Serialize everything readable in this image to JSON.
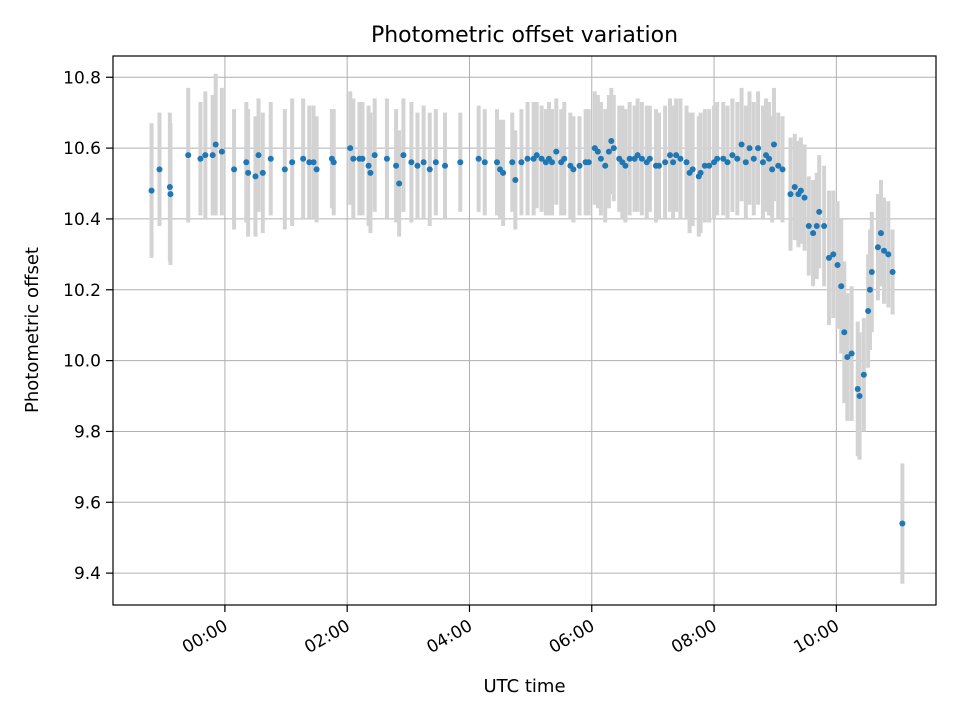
{
  "chart_data": {
    "type": "scatter",
    "title": "Photometric offset variation",
    "xlabel": "UTC time",
    "ylabel": "Photometric offset",
    "x_unit": "hours relative to 00:00 UTC",
    "xlim": [
      -1.83,
      11.63
    ],
    "ylim": [
      9.31,
      10.86
    ],
    "grid": true,
    "xticks": [
      {
        "value": 0,
        "label": "00:00"
      },
      {
        "value": 2,
        "label": "02:00"
      },
      {
        "value": 4,
        "label": "04:00"
      },
      {
        "value": 6,
        "label": "06:00"
      },
      {
        "value": 8,
        "label": "08:00"
      },
      {
        "value": 10,
        "label": "10:00"
      }
    ],
    "yticks": [
      {
        "value": 9.4,
        "label": "9.4"
      },
      {
        "value": 9.6,
        "label": "9.6"
      },
      {
        "value": 9.8,
        "label": "9.8"
      },
      {
        "value": 10.0,
        "label": "10.0"
      },
      {
        "value": 10.2,
        "label": "10.2"
      },
      {
        "value": 10.4,
        "label": "10.4"
      },
      {
        "value": 10.6,
        "label": "10.6"
      },
      {
        "value": 10.8,
        "label": "10.8"
      }
    ],
    "marker_color": "#1f77b4",
    "errorbar_color": "#d3d3d3",
    "series": [
      {
        "name": "offset",
        "points": [
          [
            -1.2,
            10.48,
            0.19
          ],
          [
            -1.07,
            10.54,
            0.16
          ],
          [
            -0.9,
            10.49,
            0.21
          ],
          [
            -0.89,
            10.47,
            0.2
          ],
          [
            -0.6,
            10.58,
            0.19
          ],
          [
            -0.4,
            10.57,
            0.16
          ],
          [
            -0.32,
            10.58,
            0.18
          ],
          [
            -0.2,
            10.58,
            0.17
          ],
          [
            -0.15,
            10.61,
            0.2
          ],
          [
            -0.05,
            10.59,
            0.18
          ],
          [
            0.15,
            10.54,
            0.17
          ],
          [
            0.35,
            10.56,
            0.17
          ],
          [
            0.38,
            10.53,
            0.18
          ],
          [
            0.5,
            10.52,
            0.17
          ],
          [
            0.55,
            10.58,
            0.16
          ],
          [
            0.62,
            10.53,
            0.17
          ],
          [
            0.75,
            10.57,
            0.16
          ],
          [
            0.98,
            10.54,
            0.17
          ],
          [
            1.1,
            10.56,
            0.18
          ],
          [
            1.28,
            10.57,
            0.17
          ],
          [
            1.38,
            10.56,
            0.16
          ],
          [
            1.45,
            10.56,
            0.16
          ],
          [
            1.5,
            10.54,
            0.15
          ],
          [
            1.75,
            10.57,
            0.14
          ],
          [
            1.78,
            10.56,
            0.15
          ],
          [
            2.05,
            10.6,
            0.16
          ],
          [
            2.1,
            10.57,
            0.17
          ],
          [
            2.2,
            10.57,
            0.16
          ],
          [
            2.25,
            10.57,
            0.16
          ],
          [
            2.35,
            10.55,
            0.17
          ],
          [
            2.38,
            10.53,
            0.17
          ],
          [
            2.45,
            10.58,
            0.16
          ],
          [
            2.65,
            10.57,
            0.17
          ],
          [
            2.8,
            10.55,
            0.16
          ],
          [
            2.85,
            10.5,
            0.15
          ],
          [
            2.92,
            10.58,
            0.16
          ],
          [
            3.05,
            10.56,
            0.17
          ],
          [
            3.15,
            10.55,
            0.15
          ],
          [
            3.25,
            10.56,
            0.16
          ],
          [
            3.35,
            10.54,
            0.16
          ],
          [
            3.45,
            10.56,
            0.15
          ],
          [
            3.6,
            10.55,
            0.15
          ],
          [
            3.85,
            10.56,
            0.14
          ],
          [
            4.15,
            10.57,
            0.15
          ],
          [
            4.25,
            10.56,
            0.15
          ],
          [
            4.45,
            10.56,
            0.15
          ],
          [
            4.5,
            10.54,
            0.14
          ],
          [
            4.55,
            10.53,
            0.15
          ],
          [
            4.7,
            10.56,
            0.14
          ],
          [
            4.75,
            10.51,
            0.14
          ],
          [
            4.85,
            10.56,
            0.15
          ],
          [
            4.95,
            10.57,
            0.16
          ],
          [
            5.05,
            10.57,
            0.16
          ],
          [
            5.1,
            10.58,
            0.15
          ],
          [
            5.18,
            10.57,
            0.15
          ],
          [
            5.25,
            10.56,
            0.15
          ],
          [
            5.3,
            10.57,
            0.16
          ],
          [
            5.35,
            10.56,
            0.15
          ],
          [
            5.42,
            10.59,
            0.15
          ],
          [
            5.5,
            10.56,
            0.15
          ],
          [
            5.55,
            10.57,
            0.16
          ],
          [
            5.65,
            10.55,
            0.15
          ],
          [
            5.7,
            10.54,
            0.15
          ],
          [
            5.8,
            10.55,
            0.14
          ],
          [
            5.9,
            10.56,
            0.15
          ],
          [
            5.95,
            10.56,
            0.15
          ],
          [
            6.05,
            10.6,
            0.16
          ],
          [
            6.1,
            10.59,
            0.16
          ],
          [
            6.15,
            10.57,
            0.16
          ],
          [
            6.22,
            10.55,
            0.16
          ],
          [
            6.28,
            10.59,
            0.16
          ],
          [
            6.32,
            10.62,
            0.15
          ],
          [
            6.36,
            10.6,
            0.15
          ],
          [
            6.45,
            10.57,
            0.15
          ],
          [
            6.5,
            10.56,
            0.16
          ],
          [
            6.55,
            10.55,
            0.16
          ],
          [
            6.62,
            10.57,
            0.16
          ],
          [
            6.7,
            10.57,
            0.15
          ],
          [
            6.75,
            10.58,
            0.16
          ],
          [
            6.82,
            10.57,
            0.16
          ],
          [
            6.9,
            10.56,
            0.16
          ],
          [
            6.95,
            10.57,
            0.15
          ],
          [
            7.05,
            10.55,
            0.16
          ],
          [
            7.1,
            10.55,
            0.15
          ],
          [
            7.2,
            10.56,
            0.16
          ],
          [
            7.28,
            10.58,
            0.16
          ],
          [
            7.33,
            10.56,
            0.16
          ],
          [
            7.38,
            10.58,
            0.16
          ],
          [
            7.45,
            10.57,
            0.17
          ],
          [
            7.55,
            10.56,
            0.16
          ],
          [
            7.6,
            10.53,
            0.17
          ],
          [
            7.65,
            10.54,
            0.16
          ],
          [
            7.75,
            10.52,
            0.17
          ],
          [
            7.78,
            10.53,
            0.17
          ],
          [
            7.85,
            10.55,
            0.16
          ],
          [
            7.92,
            10.55,
            0.16
          ],
          [
            8.0,
            10.56,
            0.16
          ],
          [
            8.05,
            10.57,
            0.16
          ],
          [
            8.15,
            10.57,
            0.16
          ],
          [
            8.22,
            10.56,
            0.16
          ],
          [
            8.3,
            10.58,
            0.16
          ],
          [
            8.38,
            10.57,
            0.16
          ],
          [
            8.45,
            10.61,
            0.16
          ],
          [
            8.52,
            10.56,
            0.16
          ],
          [
            8.58,
            10.6,
            0.16
          ],
          [
            8.65,
            10.57,
            0.16
          ],
          [
            8.72,
            10.6,
            0.16
          ],
          [
            8.8,
            10.56,
            0.16
          ],
          [
            8.85,
            10.58,
            0.16
          ],
          [
            8.9,
            10.57,
            0.16
          ],
          [
            8.95,
            10.54,
            0.15
          ],
          [
            8.98,
            10.61,
            0.16
          ],
          [
            9.05,
            10.55,
            0.15
          ],
          [
            9.12,
            10.54,
            0.15
          ],
          [
            9.25,
            10.47,
            0.16
          ],
          [
            9.32,
            10.49,
            0.15
          ],
          [
            9.38,
            10.47,
            0.15
          ],
          [
            9.42,
            10.48,
            0.15
          ],
          [
            9.48,
            10.46,
            0.15
          ],
          [
            9.55,
            10.38,
            0.14
          ],
          [
            9.62,
            10.36,
            0.15
          ],
          [
            9.68,
            10.38,
            0.15
          ],
          [
            9.72,
            10.42,
            0.16
          ],
          [
            9.8,
            10.38,
            0.17
          ],
          [
            9.88,
            10.29,
            0.19
          ],
          [
            9.95,
            10.3,
            0.18
          ],
          [
            10.02,
            10.27,
            0.18
          ],
          [
            10.08,
            10.21,
            0.19
          ],
          [
            10.13,
            10.08,
            0.2
          ],
          [
            10.18,
            10.01,
            0.18
          ],
          [
            10.25,
            10.02,
            0.19
          ],
          [
            10.35,
            9.92,
            0.19
          ],
          [
            10.38,
            9.9,
            0.18
          ],
          [
            10.45,
            9.96,
            0.16
          ],
          [
            10.52,
            10.14,
            0.16
          ],
          [
            10.55,
            10.2,
            0.17
          ],
          [
            10.58,
            10.25,
            0.17
          ],
          [
            10.68,
            10.32,
            0.15
          ],
          [
            10.73,
            10.36,
            0.15
          ],
          [
            10.78,
            10.31,
            0.15
          ],
          [
            10.85,
            10.3,
            0.15
          ],
          [
            10.92,
            10.25,
            0.12
          ],
          [
            11.08,
            9.54,
            0.17
          ]
        ]
      }
    ]
  }
}
